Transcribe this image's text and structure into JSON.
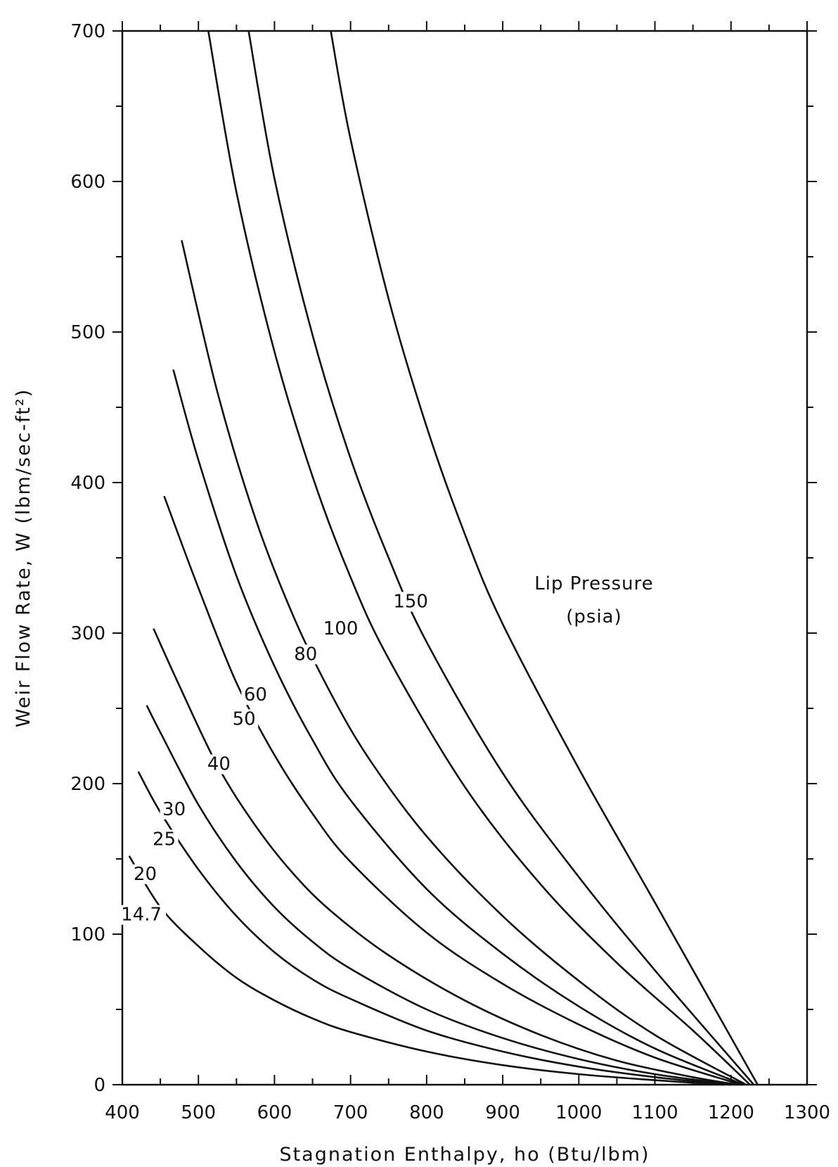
{
  "chart_data": {
    "type": "line",
    "title": "",
    "xlabel": "Stagnation Enthalpy, ho (Btu/lbm)",
    "ylabel": "Weir Flow Rate, W (lbm/sec-ft²)",
    "xlim": [
      400,
      1300
    ],
    "ylim": [
      0,
      700
    ],
    "x_ticks": [
      "400",
      "500",
      "600",
      "700",
      "800",
      "900",
      "1000",
      "1100",
      "1200",
      "1300"
    ],
    "y_ticks": [
      "0",
      "100",
      "200",
      "300",
      "400",
      "500",
      "600",
      "700"
    ],
    "grid": false,
    "legend": {
      "title": "Lip Pressure",
      "subtitle": "(psia)",
      "position": "right"
    },
    "series": [
      {
        "name": "14.7",
        "label_at": [
          425,
          110
        ],
        "points": [
          [
            409,
            152
          ],
          [
            450,
            118
          ],
          [
            500,
            92
          ],
          [
            550,
            71
          ],
          [
            600,
            56
          ],
          [
            650,
            44
          ],
          [
            700,
            35
          ],
          [
            800,
            22
          ],
          [
            900,
            13
          ],
          [
            1000,
            7
          ],
          [
            1100,
            3
          ],
          [
            1190,
            0
          ]
        ]
      },
      {
        "name": "20",
        "label_at": [
          430,
          137
        ],
        "points": [
          [
            421,
            208
          ],
          [
            450,
            181
          ],
          [
            500,
            143
          ],
          [
            550,
            112
          ],
          [
            600,
            88
          ],
          [
            650,
            70
          ],
          [
            700,
            57
          ],
          [
            800,
            36
          ],
          [
            900,
            22
          ],
          [
            1000,
            12
          ],
          [
            1100,
            5
          ],
          [
            1200,
            0
          ]
        ]
      },
      {
        "name": "25",
        "label_at": [
          455,
          160
        ],
        "points": [
          [
            432,
            252
          ],
          [
            450,
            234
          ],
          [
            500,
            186
          ],
          [
            550,
            148
          ],
          [
            600,
            118
          ],
          [
            650,
            95
          ],
          [
            700,
            77
          ],
          [
            800,
            50
          ],
          [
            900,
            31
          ],
          [
            1000,
            17
          ],
          [
            1100,
            7
          ],
          [
            1205,
            0
          ]
        ]
      },
      {
        "name": "30",
        "label_at": [
          468,
          180
        ],
        "points": [
          [
            441,
            303
          ],
          [
            475,
            265
          ],
          [
            525,
            212
          ],
          [
            575,
            172
          ],
          [
            625,
            140
          ],
          [
            675,
            115
          ],
          [
            750,
            86
          ],
          [
            850,
            56
          ],
          [
            950,
            33
          ],
          [
            1050,
            16
          ],
          [
            1150,
            5
          ],
          [
            1210,
            0
          ]
        ]
      },
      {
        "name": "40",
        "label_at": [
          527,
          210
        ],
        "points": [
          [
            455,
            391
          ],
          [
            500,
            330
          ],
          [
            550,
            267
          ],
          [
            600,
            219
          ],
          [
            650,
            180
          ],
          [
            700,
            148
          ],
          [
            800,
            101
          ],
          [
            900,
            67
          ],
          [
            1000,
            40
          ],
          [
            1100,
            18
          ],
          [
            1214,
            0
          ]
        ]
      },
      {
        "name": "50",
        "label_at": [
          560,
          240
        ],
        "points": [
          [
            467,
            475
          ],
          [
            500,
            415
          ],
          [
            550,
            338
          ],
          [
            600,
            278
          ],
          [
            650,
            229
          ],
          [
            700,
            189
          ],
          [
            800,
            130
          ],
          [
            900,
            87
          ],
          [
            1000,
            52
          ],
          [
            1100,
            24
          ],
          [
            1217,
            0
          ]
        ]
      },
      {
        "name": "60",
        "label_at": [
          575,
          256
        ],
        "points": [
          [
            478,
            561
          ],
          [
            525,
            460
          ],
          [
            575,
            376
          ],
          [
            625,
            311
          ],
          [
            675,
            259
          ],
          [
            725,
            216
          ],
          [
            800,
            165
          ],
          [
            900,
            112
          ],
          [
            1000,
            69
          ],
          [
            1100,
            33
          ],
          [
            1220,
            0
          ]
        ]
      },
      {
        "name": "80",
        "label_at": [
          641,
          283
        ],
        "points": [
          [
            513,
            700
          ],
          [
            550,
            593
          ],
          [
            600,
            487
          ],
          [
            650,
            404
          ],
          [
            700,
            337
          ],
          [
            750,
            283
          ],
          [
            850,
            198
          ],
          [
            950,
            133
          ],
          [
            1050,
            81
          ],
          [
            1150,
            36
          ],
          [
            1225,
            0
          ]
        ]
      },
      {
        "name": "100",
        "label_at": [
          687,
          300
        ],
        "points": [
          [
            566,
            700
          ],
          [
            600,
            602
          ],
          [
            650,
            498
          ],
          [
            700,
            416
          ],
          [
            750,
            350
          ],
          [
            800,
            294
          ],
          [
            900,
            207
          ],
          [
            1000,
            138
          ],
          [
            1100,
            76
          ],
          [
            1230,
            0
          ]
        ]
      },
      {
        "name": "150",
        "label_at": [
          779,
          318
        ],
        "points": [
          [
            674,
            700
          ],
          [
            700,
            628
          ],
          [
            750,
            522
          ],
          [
            800,
            437
          ],
          [
            850,
            366
          ],
          [
            900,
            306
          ],
          [
            1000,
            210
          ],
          [
            1100,
            121
          ],
          [
            1235,
            0
          ]
        ]
      }
    ]
  }
}
